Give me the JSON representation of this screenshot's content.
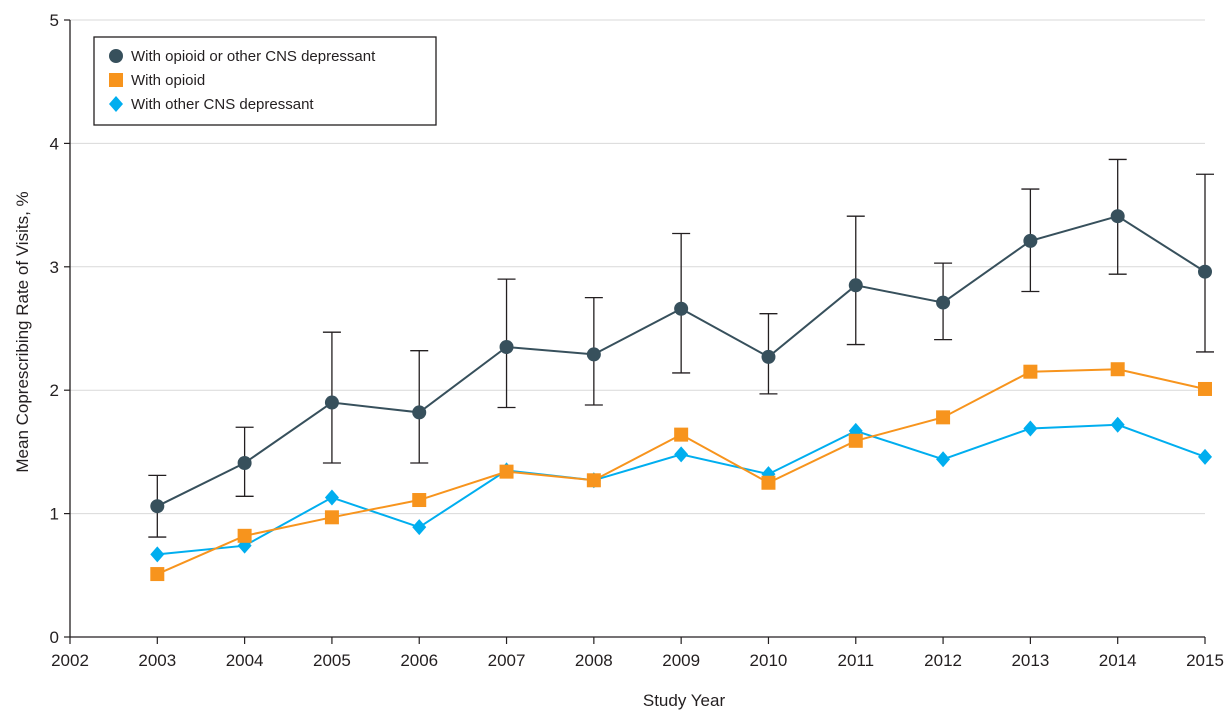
{
  "chart_data": {
    "type": "line",
    "x": [
      2003,
      2004,
      2005,
      2006,
      2007,
      2008,
      2009,
      2010,
      2011,
      2012,
      2013,
      2014,
      2015
    ],
    "x_ticks": [
      "2002",
      "2003",
      "2004",
      "2005",
      "2006",
      "2007",
      "2008",
      "2009",
      "2010",
      "2011",
      "2012",
      "2013",
      "2014",
      "2015"
    ],
    "xlim": [
      2002,
      2015
    ],
    "y_ticks": [
      "0",
      "1",
      "2",
      "3",
      "4",
      "5"
    ],
    "ylim": [
      0,
      5
    ],
    "xlabel": "Study Year",
    "ylabel": "Mean Coprescribing Rate of Visits, %",
    "grid": "horizontal",
    "legend_position": "top-left",
    "series": [
      {
        "name": "With opioid or other CNS depressant",
        "marker": "circle",
        "color": "#37505c",
        "values": [
          1.06,
          1.41,
          1.9,
          1.82,
          2.35,
          2.29,
          2.66,
          2.27,
          2.85,
          2.71,
          3.21,
          3.41,
          2.96
        ],
        "error_low": [
          0.81,
          1.14,
          1.41,
          1.41,
          1.86,
          1.88,
          2.14,
          1.97,
          2.37,
          2.41,
          2.8,
          2.94,
          2.31
        ],
        "error_high": [
          1.31,
          1.7,
          2.47,
          2.32,
          2.9,
          2.75,
          3.27,
          2.62,
          3.41,
          3.03,
          3.63,
          3.87,
          3.75
        ]
      },
      {
        "name": "With opioid",
        "marker": "square",
        "color": "#f7941d",
        "values": [
          0.51,
          0.82,
          0.97,
          1.11,
          1.34,
          1.27,
          1.64,
          1.25,
          1.59,
          1.78,
          2.15,
          2.17,
          2.01
        ]
      },
      {
        "name": "With other CNS depressant",
        "marker": "diamond",
        "color": "#00aeef",
        "values": [
          0.67,
          0.74,
          1.13,
          0.89,
          1.35,
          1.27,
          1.48,
          1.32,
          1.67,
          1.44,
          1.69,
          1.72,
          1.46
        ]
      }
    ]
  }
}
